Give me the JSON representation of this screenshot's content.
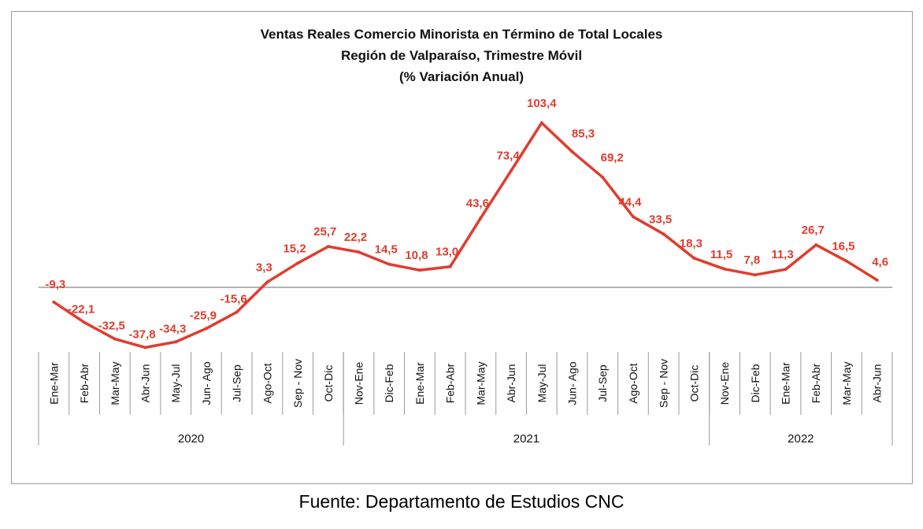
{
  "chart_data": {
    "type": "line",
    "title_lines": [
      "Ventas Reales Comercio Minorista  en Término de Total Locales",
      "Región de Valparaíso, Trimestre Móvil",
      "(% Variación Anual)"
    ],
    "categories": [
      "Ene-Mar",
      "Feb-Abr",
      "Mar-May",
      "Abr-Jun",
      "May-Jul",
      "Jun- Ago",
      "Jul-Sep",
      "Ago-Oct",
      "Sep - Nov",
      "Oct-Dic",
      "Nov-Ene",
      "Dic-Feb",
      "Ene-Mar",
      "Feb-Abr",
      "Mar-May",
      "Abr-Jun",
      "May-Jul",
      "Jun- Ago",
      "Jul-Sep",
      "Ago-Oct",
      "Sep - Nov",
      "Oct-Dic",
      "Nov-Ene",
      "Dic-Feb",
      "Ene-Mar",
      "Feb-Abr",
      "Mar-May",
      "Abr-Jun"
    ],
    "groups": [
      {
        "label": "2020",
        "count": 10
      },
      {
        "label": "2021",
        "count": 12
      },
      {
        "label": "2022",
        "count": 6
      }
    ],
    "series": [
      {
        "values": [
          -9.3,
          -22.1,
          -32.5,
          -37.8,
          -34.3,
          -25.9,
          -15.6,
          3.3,
          15.2,
          25.7,
          22.2,
          14.5,
          10.8,
          13.0,
          43.6,
          73.4,
          103.4,
          85.3,
          69.2,
          44.4,
          33.5,
          18.3,
          11.5,
          7.8,
          11.3,
          26.7,
          16.5,
          4.6
        ],
        "labels": [
          "-9,3",
          "-22,1",
          "-32,5",
          "-37,8",
          "-34,3",
          "-25,9",
          "-15,6",
          "3,3",
          "15,2",
          "25,7",
          "22,2",
          "14,5",
          "10,8",
          "13,0",
          "43,6",
          "73,4",
          "103,4",
          "85,3",
          "69,2",
          "44,4",
          "33,5",
          "18,3",
          "11,5",
          "7,8",
          "11,3",
          "26,7",
          "16,5",
          "4,6"
        ]
      }
    ],
    "colors": {
      "line": "#e03c2e",
      "label": "#e03c2e",
      "axis": "#9a9a9a"
    },
    "grid": false,
    "legend": "none"
  },
  "caption": "Fuente: Departamento de Estudios CNC"
}
